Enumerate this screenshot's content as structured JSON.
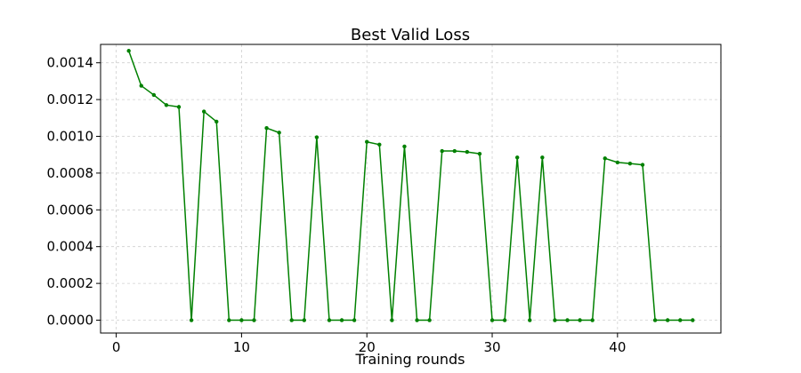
{
  "chart_data": {
    "type": "line",
    "title": "Best Valid Loss",
    "xlabel": "Training rounds",
    "ylabel": "",
    "xlim": [
      -1.25,
      48.25
    ],
    "ylim": [
      -7e-05,
      0.0015
    ],
    "xticks": [
      0,
      10,
      20,
      30,
      40
    ],
    "xtick_labels": [
      "0",
      "10",
      "20",
      "30",
      "40"
    ],
    "yticks": [
      0.0,
      0.0002,
      0.0004,
      0.0006,
      0.0008,
      0.001,
      0.0012,
      0.0014
    ],
    "ytick_labels": [
      "0.0000",
      "0.0002",
      "0.0004",
      "0.0006",
      "0.0008",
      "0.0010",
      "0.0012",
      "0.0014"
    ],
    "grid": true,
    "legend": "none",
    "color": "#008000",
    "series": [
      {
        "x": [
          1,
          2,
          3,
          4,
          5,
          6,
          7,
          8,
          9,
          10,
          11,
          12,
          13,
          14,
          15,
          16,
          17,
          18,
          19,
          20,
          21,
          22,
          23,
          24,
          25,
          26,
          27,
          28,
          29,
          30,
          31,
          32,
          33,
          34,
          35,
          36,
          37,
          38,
          39,
          40,
          41,
          42,
          43,
          44,
          45,
          46
        ],
        "values": [
          0.001465,
          0.001275,
          0.001225,
          0.00117,
          0.00116,
          0.0,
          0.001135,
          0.00108,
          0.0,
          0.0,
          0.0,
          0.001045,
          0.00102,
          0.0,
          0.0,
          0.000995,
          0.0,
          0.0,
          0.0,
          0.00097,
          0.000955,
          0.0,
          0.000945,
          0.0,
          0.0,
          0.00092,
          0.00092,
          0.000915,
          0.000905,
          0.0,
          0.0,
          0.000885,
          0.0,
          0.000885,
          0.0,
          0.0,
          0.0,
          0.0,
          0.00088,
          0.000858,
          0.000852,
          0.000845,
          0.0,
          0.0,
          0.0,
          0.0
        ]
      }
    ]
  }
}
